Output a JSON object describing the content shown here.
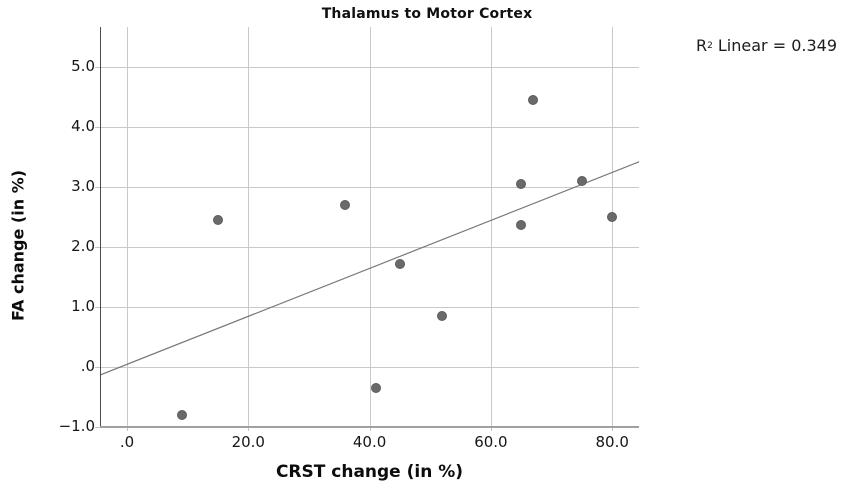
{
  "page": {
    "background": "#ffffff"
  },
  "chart_data": {
    "type": "scatter",
    "title": "Thalamus to Motor Cortex",
    "xlabel": "CRST change (in %)",
    "ylabel": "FA change (in %)",
    "annotation": {
      "r_base": "R",
      "r_exponent": "2",
      "r_rest": " Linear = 0.349",
      "r_squared_value": 0.349
    },
    "xlim": [
      -4.45,
      84.42
    ],
    "ylim": [
      -1.0,
      5.67
    ],
    "grid": true,
    "legend": "none",
    "x_ticks": [
      {
        "value": 0,
        "label": ".0"
      },
      {
        "value": 20,
        "label": "20.0"
      },
      {
        "value": 40,
        "label": "40.0"
      },
      {
        "value": 60,
        "label": "60.0"
      },
      {
        "value": 80,
        "label": "80.0"
      }
    ],
    "y_ticks": [
      {
        "value": 5,
        "label": "5.0"
      },
      {
        "value": 4,
        "label": "4.0"
      },
      {
        "value": 3,
        "label": "3.0"
      },
      {
        "value": 2,
        "label": "2.0"
      },
      {
        "value": 1,
        "label": "1.0"
      },
      {
        "value": 0,
        "label": ".0"
      },
      {
        "value": -1,
        "label": "−1.0"
      }
    ],
    "points": [
      {
        "x": 9,
        "y": -0.8
      },
      {
        "x": 15,
        "y": 2.45
      },
      {
        "x": 36,
        "y": 2.7
      },
      {
        "x": 41,
        "y": -0.35
      },
      {
        "x": 45,
        "y": 1.72
      },
      {
        "x": 52,
        "y": 0.86
      },
      {
        "x": 65,
        "y": 3.05
      },
      {
        "x": 65,
        "y": 2.37
      },
      {
        "x": 67,
        "y": 4.45
      },
      {
        "x": 75,
        "y": 3.1
      },
      {
        "x": 80,
        "y": 2.5
      }
    ],
    "trend_line": {
      "slope": 0.04,
      "intercept": 0.045,
      "x_start": -4.45,
      "x_end": 84.7
    },
    "colors": {
      "marker": "#6a6a6a",
      "marker_border": "#5c5c5c",
      "gridline": "#c9c9c9",
      "axis_left": "#4d4d4d",
      "axis_bottom": "#a0a0a0",
      "trend": "#787878",
      "text": "#111111"
    }
  }
}
